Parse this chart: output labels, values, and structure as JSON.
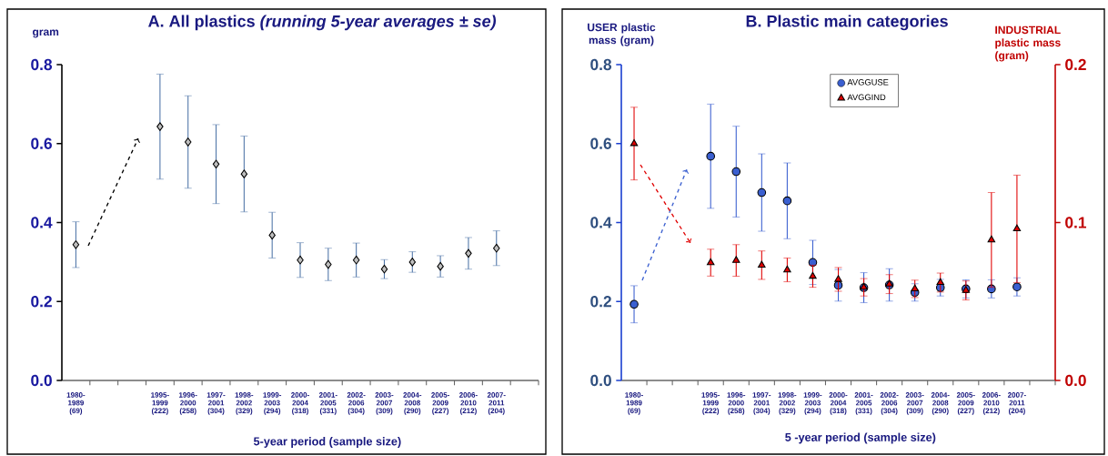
{
  "chart_data": [
    {
      "type": "scatter",
      "title": "A.  All plastics *(running 5-year averages ± se)*",
      "xlabel": "5-year period (sample size)",
      "ylabel": "gram",
      "categories": [
        "1980-1989 (69)",
        null,
        null,
        "1995-1999 (222)",
        "1996-2000 (258)",
        "1997-2001 (304)",
        "1998-2002 (329)",
        "1999-2003 (294)",
        "2000-2004 (318)",
        "2001-2005 (331)",
        "2002-2006 (304)",
        "2003-2007 (309)",
        "2004-2008 (290)",
        "2005-2009 (227)",
        "2006-2010 (212)",
        "2007-2011 (204)",
        null
      ],
      "series": [
        {
          "color": "#c0c0c0",
          "marker": "diamond",
          "values": [
            0.344,
            null,
            null,
            0.643,
            0.604,
            0.548,
            0.523,
            0.368,
            0.305,
            0.294,
            0.305,
            0.282,
            0.3,
            0.289,
            0.322,
            0.335,
            null
          ],
          "errors": [
            0.058,
            null,
            null,
            0.133,
            0.117,
            0.1,
            0.096,
            0.058,
            0.044,
            0.041,
            0.043,
            0.024,
            0.026,
            0.027,
            0.04,
            0.044,
            null
          ]
        }
      ],
      "ylim": [
        0,
        0.8
      ],
      "yticks": [
        {
          "value": 0,
          "label": "0.0"
        },
        {
          "value": 0.2,
          "label": "0.2"
        },
        {
          "value": 0.4,
          "label": "0.4"
        },
        {
          "value": 0.6,
          "label": "0.6"
        },
        {
          "value": 0.8,
          "label": "0.8"
        }
      ]
    },
    {
      "type": "scatter",
      "title": "B.   Plastic main categories",
      "xlabel": "5 -year period (sample size)",
      "ylabel": "USER plastic mass (gram)",
      "y2label": "INDUSTRIAL plastic mass (gram)",
      "categories": [
        "1980-1989 (69)",
        null,
        null,
        "1995-1999 (222)",
        "1996-2000 (258)",
        "1997-2001 (304)",
        "1998-2002 (329)",
        "1999-2003 (294)",
        "2000-2004 (318)",
        "2001-2005 (331)",
        "2002-2006 (304)",
        "2003-2007 (309)",
        "2004-2008 (290)",
        "2005-2009 (227)",
        "2006-2010 (212)",
        "2007-2011 (204)",
        null
      ],
      "series": [
        {
          "name": "AVGGUSE",
          "color": "#3a5fd0",
          "marker": "circle",
          "values": [
            0.193,
            null,
            null,
            0.568,
            0.529,
            0.476,
            0.455,
            0.299,
            0.241,
            0.235,
            0.242,
            0.223,
            0.235,
            0.232,
            0.232,
            0.237,
            null
          ],
          "errors": [
            0.047,
            null,
            null,
            0.132,
            0.115,
            0.098,
            0.096,
            0.056,
            0.04,
            0.038,
            0.041,
            0.022,
            0.021,
            0.023,
            0.023,
            0.023,
            null
          ]
        },
        {
          "name": "AVGGIND",
          "color": "#e00000",
          "marker": "triangle",
          "axis": "y2",
          "values": [
            0.15,
            null,
            null,
            0.0746,
            0.076,
            0.073,
            0.07,
            0.066,
            0.064,
            0.059,
            0.061,
            0.058,
            0.062,
            0.057,
            0.089,
            0.096,
            null
          ],
          "errors": [
            0.023,
            null,
            null,
            0.0085,
            0.01,
            0.009,
            0.0075,
            0.007,
            0.0075,
            0.0055,
            0.006,
            0.0055,
            0.006,
            0.006,
            0.03,
            0.034,
            null
          ]
        }
      ],
      "legend": "top",
      "ylim": [
        0,
        0.8
      ],
      "yticks": [
        {
          "value": 0,
          "label": "0.0"
        },
        {
          "value": 0.2,
          "label": "0.2"
        },
        {
          "value": 0.4,
          "label": "0.4"
        },
        {
          "value": 0.6,
          "label": "0.6"
        },
        {
          "value": 0.8,
          "label": "0.8"
        }
      ],
      "y2lim": [
        0,
        0.2
      ],
      "y2ticks": [
        {
          "value": 0,
          "label": "0.0"
        },
        {
          "value": 0.1,
          "label": "0.1"
        },
        {
          "value": 0.2,
          "label": "0.2"
        }
      ]
    }
  ]
}
